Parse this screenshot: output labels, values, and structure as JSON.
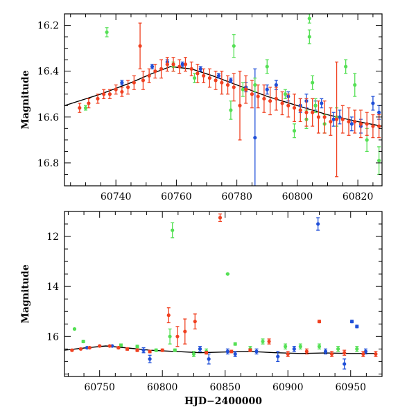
{
  "colors": {
    "blue": "#1f4fd8",
    "green": "#55e055",
    "red": "#f04020",
    "purple": "#8a3fc0",
    "model": "#000000"
  },
  "chart_data": [
    {
      "type": "scatter",
      "title": "",
      "xlabel": "",
      "ylabel": "Magnitude",
      "xlim": [
        60723,
        60828
      ],
      "ylim": [
        16.9,
        16.15
      ],
      "y_inverted": true,
      "xticks": [
        60740,
        60760,
        60780,
        60800,
        60820
      ],
      "yticks": [
        16.2,
        16.4,
        16.6,
        16.8
      ],
      "model_line": {
        "x": [
          60723,
          60735,
          60745,
          60752,
          60758,
          60765,
          60772,
          60780,
          60790,
          60800,
          60810,
          60820,
          60828
        ],
        "y": [
          16.55,
          16.5,
          16.45,
          16.41,
          16.38,
          16.39,
          16.42,
          16.46,
          16.51,
          16.55,
          16.59,
          16.62,
          16.64
        ]
      },
      "series": [
        {
          "name": "blue",
          "color": "#1f4fd8",
          "points": [
            [
              60742,
              16.45
            ],
            [
              60752,
              16.38
            ],
            [
              60757,
              16.36
            ],
            [
              60762,
              16.37
            ],
            [
              60768,
              16.39
            ],
            [
              60774,
              16.42
            ],
            [
              60778,
              16.44
            ],
            [
              60783,
              16.47
            ],
            [
              60786,
              16.69
            ],
            [
              60790,
              16.48
            ],
            [
              60793,
              16.46
            ],
            [
              60797,
              16.51
            ],
            [
              60801,
              16.55
            ],
            [
              60803,
              16.53
            ],
            [
              60806,
              16.55
            ],
            [
              60808,
              16.54
            ],
            [
              60812,
              16.61
            ],
            [
              60814,
              16.6
            ],
            [
              60818,
              16.63
            ],
            [
              60821,
              16.64
            ],
            [
              60825,
              16.54
            ],
            [
              60827,
              16.58
            ]
          ],
          "errors": [
            0.01,
            0.01,
            0.01,
            0.01,
            0.01,
            0.01,
            0.01,
            0.02,
            0.3,
            0.02,
            0.02,
            0.02,
            0.03,
            0.03,
            0.02,
            0.02,
            0.03,
            0.03,
            0.03,
            0.03,
            0.03,
            0.03
          ]
        },
        {
          "name": "green",
          "color": "#55e055",
          "points": [
            [
              60730,
              16.56
            ],
            [
              60737,
              16.23
            ],
            [
              60759,
              16.38
            ],
            [
              60766,
              16.43
            ],
            [
              60778,
              16.57
            ],
            [
              60779,
              16.29
            ],
            [
              60782,
              16.48
            ],
            [
              60786,
              16.46
            ],
            [
              60790,
              16.38
            ],
            [
              60796,
              16.5
            ],
            [
              60799,
              16.66
            ],
            [
              60803,
              16.61
            ],
            [
              60804,
              16.17
            ],
            [
              60804,
              16.25
            ],
            [
              60805,
              16.45
            ],
            [
              60806,
              16.55
            ],
            [
              60809,
              16.63
            ],
            [
              60813,
              16.6
            ],
            [
              60816,
              16.38
            ],
            [
              60819,
              16.46
            ],
            [
              60823,
              16.7
            ],
            [
              60827,
              16.79
            ]
          ],
          "errors": [
            0.01,
            0.02,
            0.02,
            0.02,
            0.04,
            0.05,
            0.03,
            0.03,
            0.03,
            0.02,
            0.03,
            0.04,
            0.02,
            0.03,
            0.03,
            0.03,
            0.04,
            0.04,
            0.03,
            0.05,
            0.05,
            0.06
          ]
        },
        {
          "name": "red",
          "color": "#f04020",
          "points": [
            [
              60728,
              16.56
            ],
            [
              60731,
              16.54
            ],
            [
              60734,
              16.52
            ],
            [
              60736,
              16.5
            ],
            [
              60738,
              16.5
            ],
            [
              60740,
              16.48
            ],
            [
              60742,
              16.49
            ],
            [
              60744,
              16.47
            ],
            [
              60746,
              16.45
            ],
            [
              60748,
              16.29
            ],
            [
              60749,
              16.44
            ],
            [
              60751,
              16.42
            ],
            [
              60753,
              16.4
            ],
            [
              60755,
              16.39
            ],
            [
              60757,
              16.37
            ],
            [
              60759,
              16.37
            ],
            [
              60761,
              16.38
            ],
            [
              60763,
              16.37
            ],
            [
              60765,
              16.39
            ],
            [
              60767,
              16.41
            ],
            [
              60769,
              16.42
            ],
            [
              60771,
              16.43
            ],
            [
              60773,
              16.44
            ],
            [
              60775,
              16.45
            ],
            [
              60777,
              16.46
            ],
            [
              60779,
              16.47
            ],
            [
              60781,
              16.55
            ],
            [
              60783,
              16.48
            ],
            [
              60785,
              16.5
            ],
            [
              60787,
              16.51
            ],
            [
              60789,
              16.52
            ],
            [
              60791,
              16.53
            ],
            [
              60793,
              16.52
            ],
            [
              60795,
              16.54
            ],
            [
              60797,
              16.55
            ],
            [
              60799,
              16.56
            ],
            [
              60801,
              16.57
            ],
            [
              60803,
              16.58
            ],
            [
              60805,
              16.58
            ],
            [
              60807,
              16.6
            ],
            [
              60809,
              16.6
            ],
            [
              60811,
              16.62
            ],
            [
              60813,
              16.61
            ],
            [
              60815,
              16.61
            ],
            [
              60817,
              16.62
            ],
            [
              60819,
              16.62
            ],
            [
              60821,
              16.63
            ],
            [
              60823,
              16.63
            ],
            [
              60825,
              16.64
            ],
            [
              60827,
              16.64
            ]
          ],
          "errors": [
            0.02,
            0.02,
            0.02,
            0.02,
            0.02,
            0.02,
            0.02,
            0.03,
            0.03,
            0.1,
            0.04,
            0.03,
            0.03,
            0.04,
            0.03,
            0.03,
            0.03,
            0.03,
            0.03,
            0.04,
            0.03,
            0.04,
            0.04,
            0.05,
            0.04,
            0.06,
            0.15,
            0.06,
            0.06,
            0.05,
            0.06,
            0.06,
            0.05,
            0.05,
            0.05,
            0.06,
            0.05,
            0.06,
            0.06,
            0.07,
            0.07,
            0.06,
            0.25,
            0.06,
            0.06,
            0.05,
            0.06,
            0.05,
            0.05,
            0.05
          ]
        }
      ]
    },
    {
      "type": "scatter",
      "title": "",
      "xlabel": "HJD−2400000",
      "ylabel": "Magnitude",
      "xlim": [
        60722,
        60975
      ],
      "ylim": [
        17.6,
        11.0
      ],
      "y_inverted": true,
      "xticks": [
        60750,
        60800,
        60850,
        60900,
        60950
      ],
      "yticks": [
        12,
        14,
        16
      ],
      "model_line": {
        "x": [
          60722,
          60740,
          60755,
          60770,
          60790,
          60810,
          60830,
          60850,
          60870,
          60890,
          60910,
          60930,
          60950,
          60970
        ],
        "y": [
          16.55,
          16.45,
          16.38,
          16.45,
          16.55,
          16.6,
          16.65,
          16.62,
          16.6,
          16.65,
          16.68,
          16.66,
          16.68,
          16.68
        ]
      },
      "series": [
        {
          "name": "blue",
          "color": "#1f4fd8",
          "points": [
            [
              60740,
              16.45
            ],
            [
              60760,
              16.38
            ],
            [
              60785,
              16.55
            ],
            [
              60790,
              16.9
            ],
            [
              60830,
              16.5
            ],
            [
              60837,
              16.9
            ],
            [
              60852,
              16.6
            ],
            [
              60858,
              16.7
            ],
            [
              60875,
              16.6
            ],
            [
              60892,
              16.8
            ],
            [
              60905,
              16.5
            ],
            [
              60924,
              11.5
            ],
            [
              60930,
              16.6
            ],
            [
              60945,
              17.1
            ],
            [
              60951,
              15.4
            ],
            [
              60955,
              15.6
            ],
            [
              60962,
              16.6
            ]
          ],
          "errors": [
            0.03,
            0.03,
            0.1,
            0.15,
            0.1,
            0.2,
            0.1,
            0.1,
            0.1,
            0.2,
            0.1,
            0.25,
            0.1,
            0.2,
            0.05,
            0.05,
            0.1
          ]
        },
        {
          "name": "green",
          "color": "#55e055",
          "points": [
            [
              60730,
              15.7
            ],
            [
              60737,
              16.2
            ],
            [
              60767,
              16.35
            ],
            [
              60780,
              16.4
            ],
            [
              60795,
              16.55
            ],
            [
              60806,
              16.0
            ],
            [
              60808,
              11.75
            ],
            [
              60810,
              16.55
            ],
            [
              60825,
              16.7
            ],
            [
              60835,
              16.6
            ],
            [
              60852,
              13.5
            ],
            [
              60858,
              16.3
            ],
            [
              60870,
              16.5
            ],
            [
              60880,
              16.2
            ],
            [
              60898,
              16.4
            ],
            [
              60910,
              16.4
            ],
            [
              60925,
              16.4
            ],
            [
              60940,
              16.5
            ],
            [
              60955,
              16.5
            ]
          ],
          "errors": [
            0.02,
            0.05,
            0.05,
            0.05,
            0.05,
            0.3,
            0.3,
            0.05,
            0.1,
            0.1,
            0.02,
            0.05,
            0.1,
            0.1,
            0.1,
            0.1,
            0.1,
            0.1,
            0.1
          ]
        },
        {
          "name": "red",
          "color": "#f04020",
          "points": [
            [
              60728,
              16.55
            ],
            [
              60735,
              16.5
            ],
            [
              60742,
              16.45
            ],
            [
              60750,
              16.38
            ],
            [
              60758,
              16.38
            ],
            [
              60765,
              16.45
            ],
            [
              60772,
              16.5
            ],
            [
              60780,
              16.55
            ],
            [
              60790,
              16.6
            ],
            [
              60800,
              16.55
            ],
            [
              60805,
              15.15
            ],
            [
              60812,
              16.0
            ],
            [
              60818,
              15.8
            ],
            [
              60826,
              15.4
            ],
            [
              60835,
              16.65
            ],
            [
              60846,
              11.25
            ],
            [
              60855,
              16.6
            ],
            [
              60870,
              16.55
            ],
            [
              60885,
              16.2
            ],
            [
              60900,
              16.7
            ],
            [
              60915,
              16.6
            ],
            [
              60925,
              15.4
            ],
            [
              60935,
              16.7
            ],
            [
              60945,
              16.65
            ],
            [
              60960,
              16.7
            ],
            [
              60970,
              16.7
            ]
          ],
          "errors": [
            0.03,
            0.03,
            0.03,
            0.03,
            0.03,
            0.04,
            0.05,
            0.05,
            0.05,
            0.05,
            0.3,
            0.4,
            0.5,
            0.3,
            0.05,
            0.15,
            0.05,
            0.05,
            0.1,
            0.1,
            0.1,
            0.05,
            0.1,
            0.1,
            0.1,
            0.1
          ]
        }
      ]
    }
  ]
}
